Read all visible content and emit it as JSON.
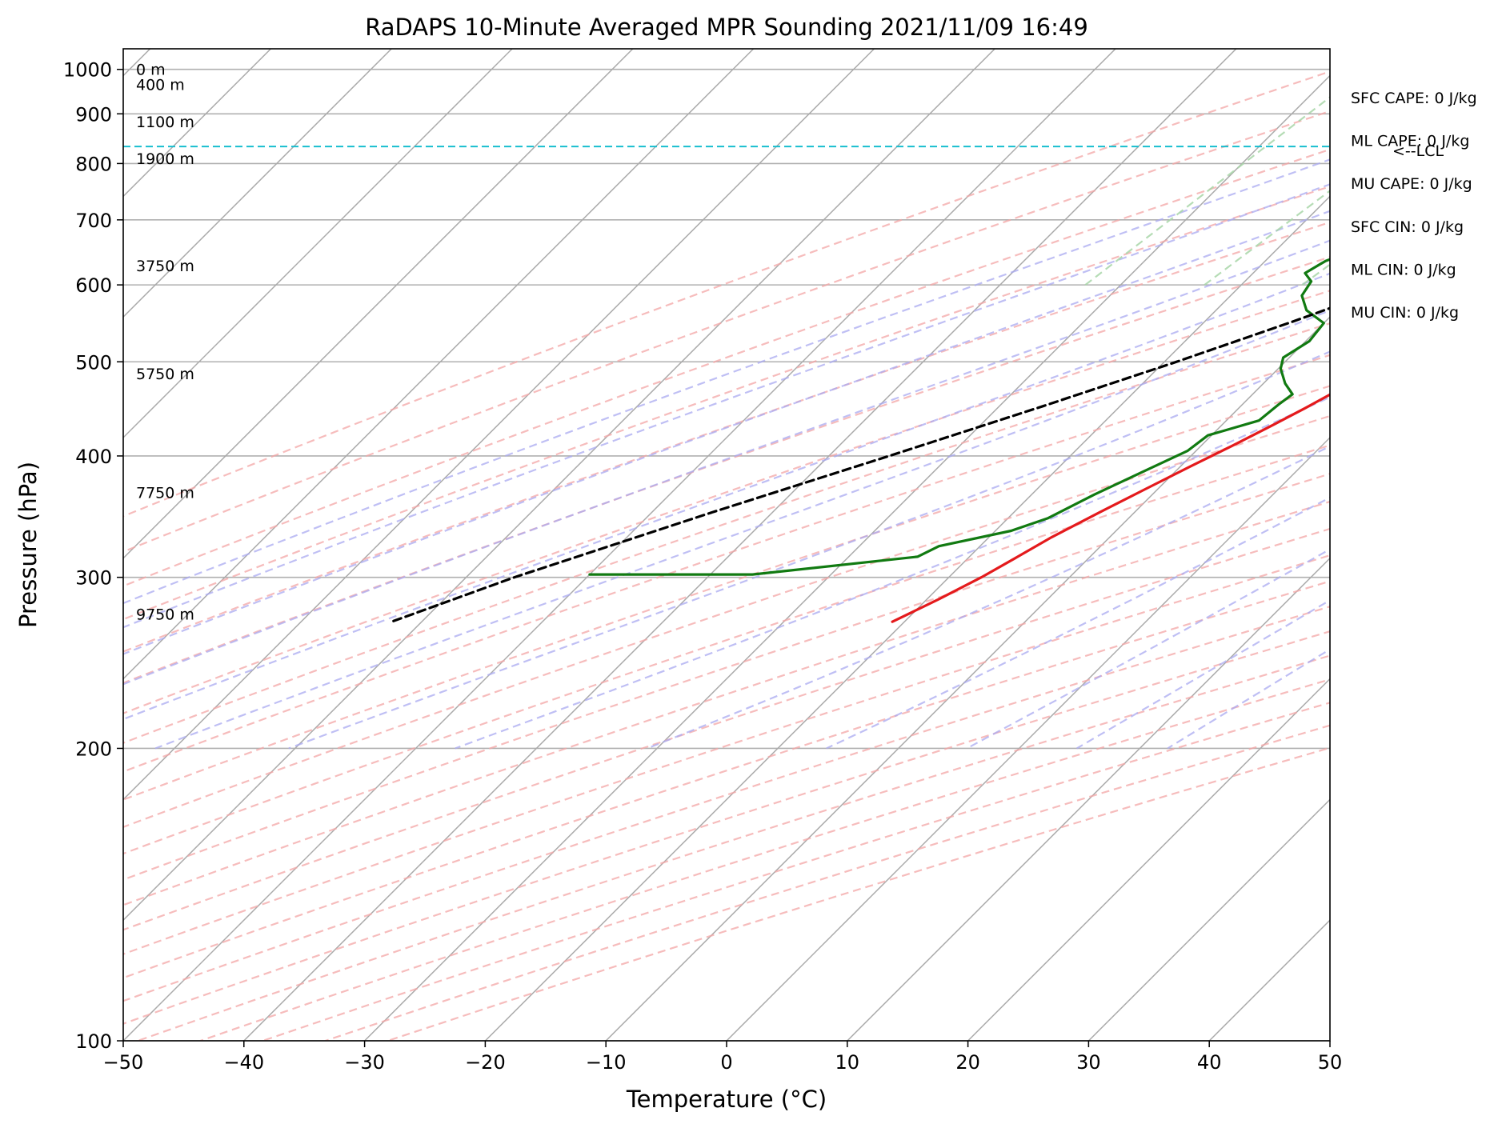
{
  "chart_data": {
    "type": "line",
    "title": "RaDAPS 10-Minute Averaged MPR Sounding 2021/11/09 16:49",
    "xlabel": "Temperature (°C)",
    "ylabel": "Pressure (hPa)",
    "xlim": [
      -50,
      50
    ],
    "ylim": [
      1050,
      100
    ],
    "y_scale": "log",
    "grid": true,
    "x_ticks": [
      -50,
      -40,
      -30,
      -20,
      -10,
      0,
      10,
      20,
      30,
      40,
      50
    ],
    "y_ticks": [
      100,
      200,
      300,
      400,
      500,
      600,
      700,
      800,
      900,
      1000
    ],
    "x_tick_labels": [
      "−50",
      "−40",
      "−30",
      "−20",
      "−10",
      "0",
      "10",
      "20",
      "30",
      "40",
      "50"
    ],
    "y_tick_labels": [
      "100",
      "200",
      "300",
      "400",
      "500",
      "600",
      "700",
      "800",
      "900",
      "1000"
    ],
    "height_labels": [
      {
        "text": "9750 m",
        "p": 275
      },
      {
        "text": "7750 m",
        "p": 367
      },
      {
        "text": "5750 m",
        "p": 486
      },
      {
        "text": "3750 m",
        "p": 628
      },
      {
        "text": "1900 m",
        "p": 810
      },
      {
        "text": "1100 m",
        "p": 884
      },
      {
        "text": "400 m",
        "p": 965
      },
      {
        "text": "0 m",
        "p": 1000
      }
    ],
    "stats": [
      "SFC CAPE: 0 J/kg",
      "ML CAPE: 0 J/kg",
      "MU CAPE: 0 J/kg",
      "SFC CIN: 0 J/kg",
      "ML CIN: 0 J/kg",
      "MU CIN: 0 J/kg"
    ],
    "lcl": {
      "label": "<--LCL",
      "p": 833,
      "color": "#17becf"
    },
    "series": [
      {
        "role": "temperature",
        "color": "#e41a1c",
        "points": [
          {
            "p": 1000,
            "t": 21.5
          },
          {
            "p": 985,
            "t": 20.2
          },
          {
            "p": 970,
            "t": 19.0
          },
          {
            "p": 950,
            "t": 18.0
          },
          {
            "p": 930,
            "t": 17.8
          },
          {
            "p": 910,
            "t": 17.6
          },
          {
            "p": 890,
            "t": 17.2
          },
          {
            "p": 870,
            "t": 16.5
          },
          {
            "p": 855,
            "t": 16.6
          },
          {
            "p": 845,
            "t": 16.0
          },
          {
            "p": 833,
            "t": 15.6
          },
          {
            "p": 820,
            "t": 15.3
          },
          {
            "p": 800,
            "t": 14.9
          },
          {
            "p": 770,
            "t": 14.0
          },
          {
            "p": 740,
            "t": 12.7
          },
          {
            "p": 710,
            "t": 11.3
          },
          {
            "p": 680,
            "t": 10.0
          },
          {
            "p": 650,
            "t": 8.4
          },
          {
            "p": 620,
            "t": 6.6
          },
          {
            "p": 600,
            "t": 5.5
          },
          {
            "p": 575,
            "t": 4.0
          },
          {
            "p": 555,
            "t": 2.7
          },
          {
            "p": 540,
            "t": 1.6
          },
          {
            "p": 525,
            "t": 0.6
          },
          {
            "p": 500,
            "t": -1.0
          },
          {
            "p": 480,
            "t": -2.5
          },
          {
            "p": 462,
            "t": -3.6
          },
          {
            "p": 448,
            "t": -4.5
          },
          {
            "p": 430,
            "t": -5.8
          },
          {
            "p": 410,
            "t": -7.4
          },
          {
            "p": 390,
            "t": -9.2
          },
          {
            "p": 370,
            "t": -11.0
          },
          {
            "p": 350,
            "t": -12.9
          },
          {
            "p": 330,
            "t": -14.8
          },
          {
            "p": 315,
            "t": -16.0
          },
          {
            "p": 300,
            "t": -17.3
          },
          {
            "p": 285,
            "t": -19.0
          },
          {
            "p": 270,
            "t": -21.0
          }
        ]
      },
      {
        "role": "dewpoint",
        "color": "#117a11",
        "points": [
          {
            "p": 1000,
            "t": 9.0
          },
          {
            "p": 997,
            "t": 3.5
          },
          {
            "p": 990,
            "t": 0.2
          },
          {
            "p": 975,
            "t": -4.7
          },
          {
            "p": 955,
            "t": -6.5
          },
          {
            "p": 945,
            "t": -6.4
          },
          {
            "p": 930,
            "t": -5.3
          },
          {
            "p": 910,
            "t": -5.5
          },
          {
            "p": 895,
            "t": -7.0
          },
          {
            "p": 880,
            "t": -10.3
          },
          {
            "p": 845,
            "t": -15.8
          },
          {
            "p": 830,
            "t": -15.9
          },
          {
            "p": 818,
            "t": -14.7
          },
          {
            "p": 812,
            "t": -14.7
          },
          {
            "p": 800,
            "t": -14.5
          },
          {
            "p": 786,
            "t": -16.0
          },
          {
            "p": 770,
            "t": -17.0
          },
          {
            "p": 750,
            "t": -16.5
          },
          {
            "p": 720,
            "t": -14.7
          },
          {
            "p": 695,
            "t": -13.8
          },
          {
            "p": 660,
            "t": -12.8
          },
          {
            "p": 635,
            "t": -15.0
          },
          {
            "p": 617,
            "t": -15.7
          },
          {
            "p": 605,
            "t": -14.5
          },
          {
            "p": 585,
            "t": -14.1
          },
          {
            "p": 565,
            "t": -12.5
          },
          {
            "p": 548,
            "t": -10.0
          },
          {
            "p": 525,
            "t": -9.7
          },
          {
            "p": 505,
            "t": -10.5
          },
          {
            "p": 492,
            "t": -9.8
          },
          {
            "p": 475,
            "t": -8.2
          },
          {
            "p": 463,
            "t": -6.7
          },
          {
            "p": 452,
            "t": -7.0
          },
          {
            "p": 435,
            "t": -7.3
          },
          {
            "p": 420,
            "t": -10.3
          },
          {
            "p": 405,
            "t": -10.7
          },
          {
            "p": 385,
            "t": -12.7
          },
          {
            "p": 365,
            "t": -14.8
          },
          {
            "p": 345,
            "t": -16.7
          },
          {
            "p": 335,
            "t": -18.7
          },
          {
            "p": 323,
            "t": -23.4
          },
          {
            "p": 315,
            "t": -24.3
          },
          {
            "p": 302,
            "t": -36.5
          },
          {
            "p": 302,
            "t": -50
          }
        ]
      },
      {
        "role": "parcel",
        "color": "#000000",
        "dashed": true,
        "points": [
          {
            "p": 1000,
            "t": 21.5
          },
          {
            "p": 950,
            "t": 17.4
          },
          {
            "p": 900,
            "t": 13.4
          },
          {
            "p": 860,
            "t": 10.6
          },
          {
            "p": 833,
            "t": 9.2
          },
          {
            "p": 800,
            "t": 7.5
          },
          {
            "p": 750,
            "t": 4.4
          },
          {
            "p": 700,
            "t": 1.2
          },
          {
            "p": 650,
            "t": -2.7
          },
          {
            "p": 600,
            "t": -7.3
          },
          {
            "p": 550,
            "t": -12.7
          },
          {
            "p": 500,
            "t": -19.0
          },
          {
            "p": 450,
            "t": -26.4
          },
          {
            "p": 400,
            "t": -35.0
          },
          {
            "p": 350,
            "t": -45.0
          },
          {
            "p": 300,
            "t": -56.0
          },
          {
            "p": 270,
            "t": -62.5
          }
        ]
      }
    ]
  }
}
